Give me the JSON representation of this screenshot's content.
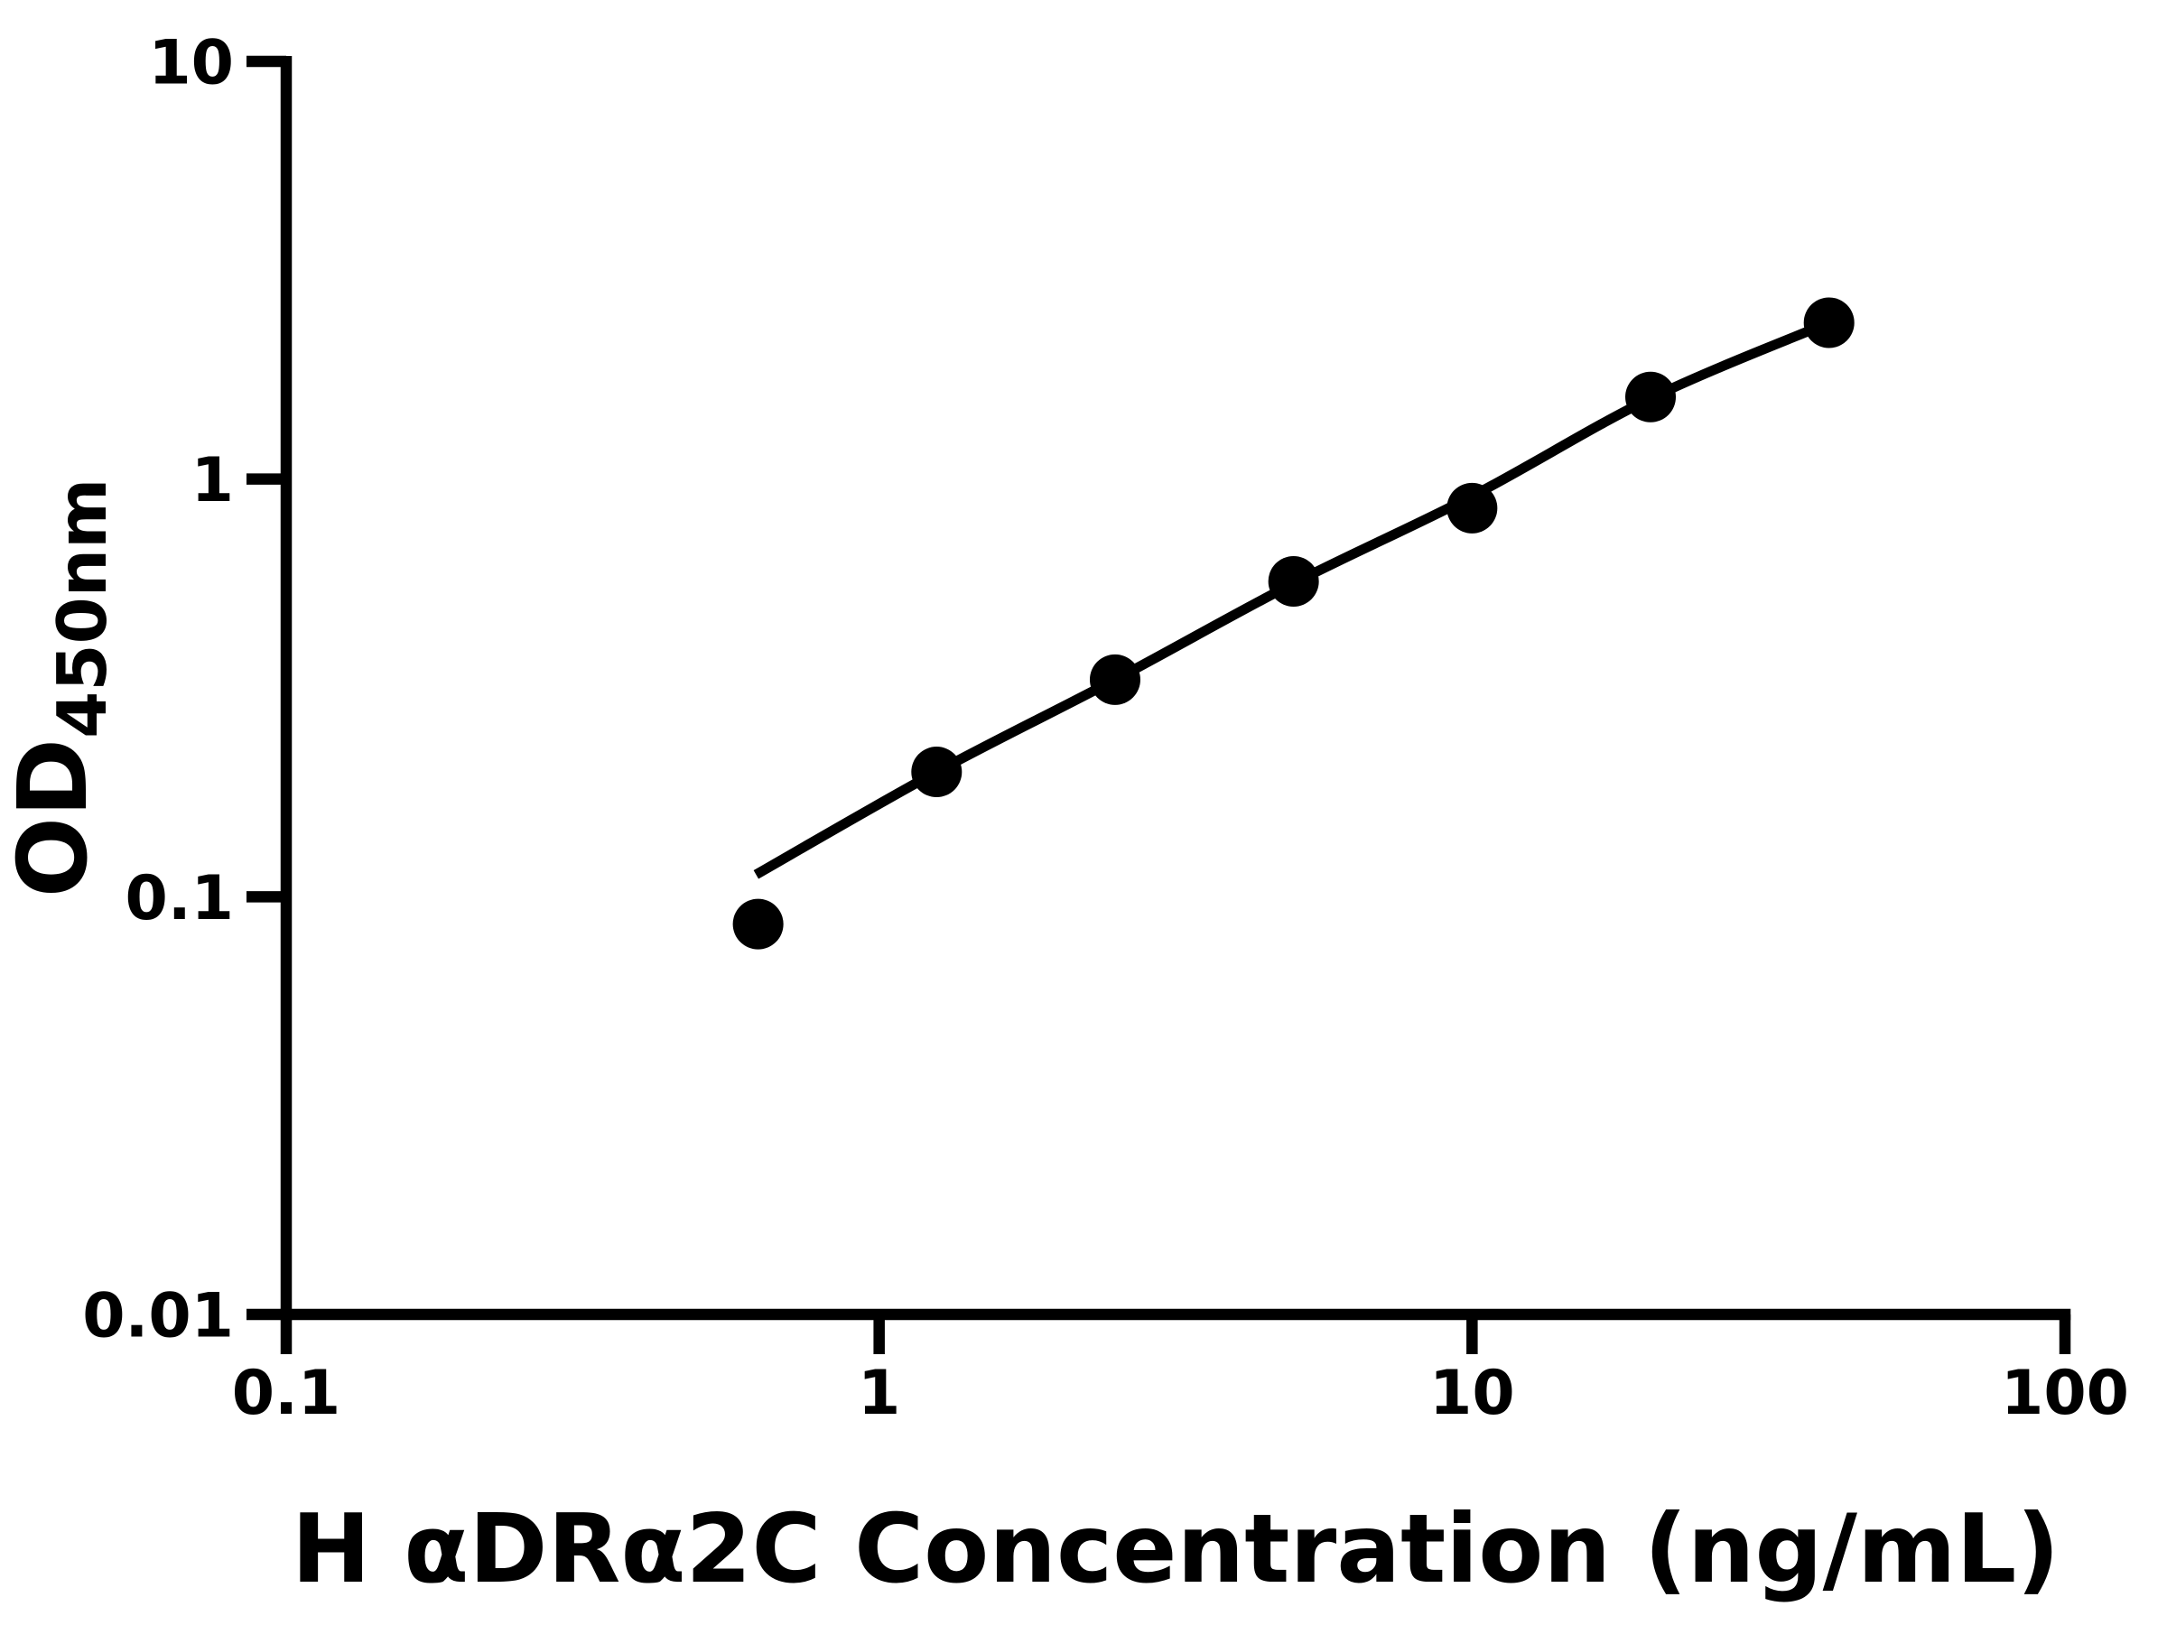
{
  "figure": {
    "background_color": "#ffffff",
    "ink_color": "#000000"
  },
  "chart_data": {
    "type": "scatter",
    "title": "",
    "xlabel": "H αDRα2C Concentration (ng/mL)",
    "ylabel_main": "OD",
    "ylabel_sub": "450nm",
    "x_scale": "log",
    "y_scale": "log",
    "xlim": [
      0.1,
      100
    ],
    "ylim": [
      0.01,
      10
    ],
    "grid": "off",
    "legend": "none",
    "x_ticks": [
      {
        "value": 0.1,
        "label": "0.1"
      },
      {
        "value": 1,
        "label": "1"
      },
      {
        "value": 10,
        "label": "10"
      },
      {
        "value": 100,
        "label": "100"
      }
    ],
    "y_ticks": [
      {
        "value": 10,
        "label": "10"
      },
      {
        "value": 1,
        "label": "1"
      },
      {
        "value": 0.1,
        "label": "0.1"
      },
      {
        "value": 0.01,
        "label": "0.01"
      }
    ],
    "series": [
      {
        "name": "standard-curve-points",
        "marker": "circle",
        "marker_color": "#000000",
        "points": [
          {
            "x": 0.625,
            "y": 0.086
          },
          {
            "x": 1.25,
            "y": 0.199
          },
          {
            "x": 2.5,
            "y": 0.331
          },
          {
            "x": 5,
            "y": 0.569
          },
          {
            "x": 10,
            "y": 0.852
          },
          {
            "x": 20,
            "y": 1.572
          },
          {
            "x": 40,
            "y": 2.368
          }
        ]
      }
    ],
    "fit_curve": {
      "name": "four-parameter-fit-line",
      "line_color": "#000000",
      "points": [
        {
          "x": 0.62,
          "y": 0.113
        },
        {
          "x": 1.25,
          "y": 0.199
        },
        {
          "x": 2.5,
          "y": 0.331
        },
        {
          "x": 5,
          "y": 0.563
        },
        {
          "x": 10,
          "y": 0.91
        },
        {
          "x": 20,
          "y": 1.56
        },
        {
          "x": 40,
          "y": 2.368
        }
      ]
    }
  }
}
